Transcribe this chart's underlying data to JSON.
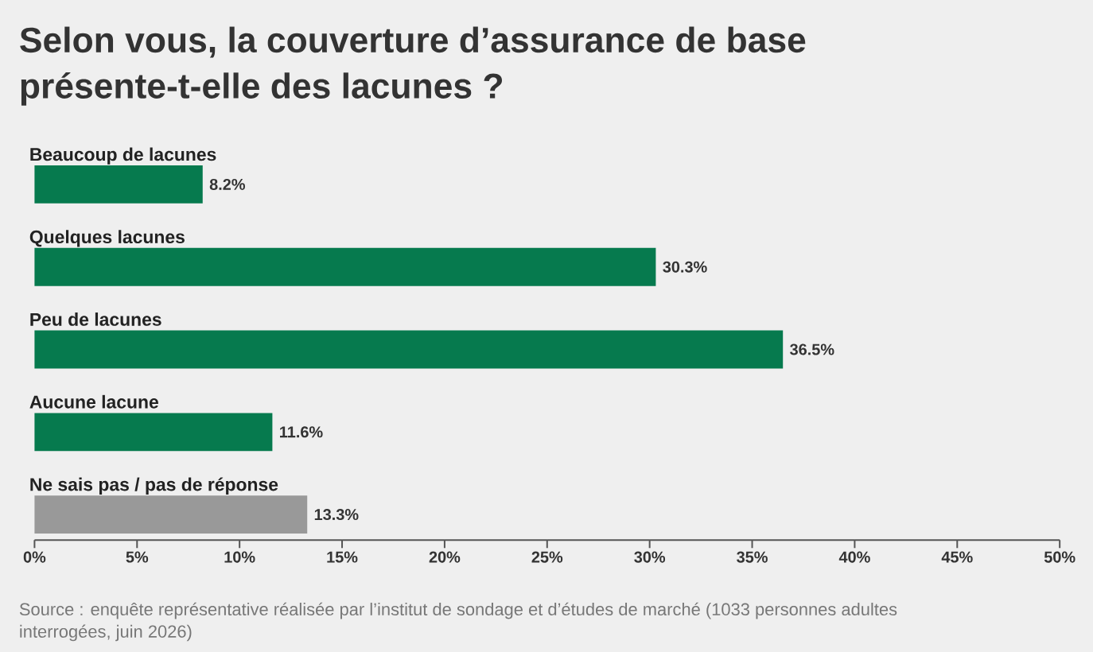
{
  "chart_data": {
    "type": "bar",
    "orientation": "horizontal",
    "title": "Selon vous, la couverture d’assurance de base présente-t-elle des lacunes ?",
    "categories": [
      "Beaucoup de lacunes",
      "Quelques lacunes",
      "Peu de lacunes",
      "Aucune lacune",
      "Ne sais pas / pas de réponse"
    ],
    "values": [
      8.2,
      30.3,
      36.5,
      11.6,
      13.3
    ],
    "colors": [
      "#067a4e",
      "#067a4e",
      "#067a4e",
      "#067a4e",
      "#999999"
    ],
    "value_labels": [
      "8.2%",
      "30.3%",
      "36.5%",
      "11.6%",
      "13.3%"
    ],
    "xlim": [
      0,
      50
    ],
    "xticks": [
      {
        "value": 0,
        "label": "0%"
      },
      {
        "value": 5,
        "label": "5%"
      },
      {
        "value": 10,
        "label": "10%"
      },
      {
        "value": 15,
        "label": "15%"
      },
      {
        "value": 20,
        "label": "20%"
      },
      {
        "value": 25,
        "label": "25%"
      },
      {
        "value": 30,
        "label": "30%"
      },
      {
        "value": 35,
        "label": "35%"
      },
      {
        "value": 40,
        "label": "40%"
      },
      {
        "value": 45,
        "label": "45%"
      },
      {
        "value": 50,
        "label": "50%"
      }
    ],
    "annotations": [
      "Source : enquête représentative réalisée par l’institut de sondage et d’études de marché (1033 personnes adultes interrogées, juin 2026)"
    ]
  }
}
